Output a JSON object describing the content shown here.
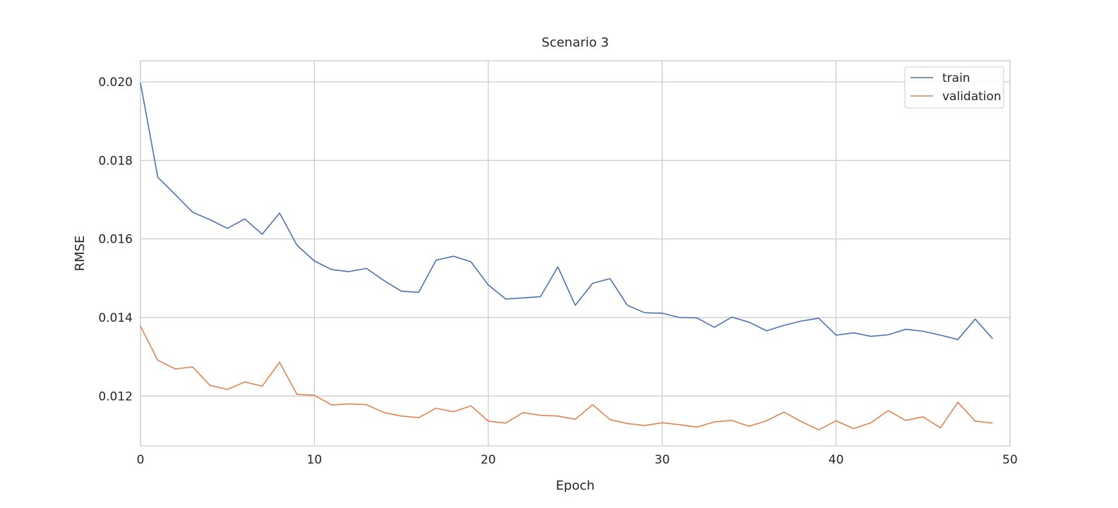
{
  "chart_data": {
    "type": "line",
    "title": "Scenario 3",
    "xlabel": "Epoch",
    "ylabel": "RMSE",
    "xlim": [
      0,
      50
    ],
    "ylim": [
      0.01073,
      0.02054
    ],
    "xticks": [
      0,
      10,
      20,
      30,
      40,
      50
    ],
    "xtick_labels": [
      "0",
      "10",
      "20",
      "30",
      "40",
      "50"
    ],
    "yticks": [
      0.012,
      0.014,
      0.016,
      0.018,
      0.02
    ],
    "ytick_labels": [
      "0.012",
      "0.014",
      "0.016",
      "0.018",
      "0.020"
    ],
    "grid": true,
    "legend_position": "top-right",
    "x": [
      0,
      1,
      2,
      3,
      4,
      5,
      6,
      7,
      8,
      9,
      10,
      11,
      12,
      13,
      14,
      15,
      16,
      17,
      18,
      19,
      20,
      21,
      22,
      23,
      24,
      25,
      26,
      27,
      28,
      29,
      30,
      31,
      32,
      33,
      34,
      35,
      36,
      37,
      38,
      39,
      40,
      41,
      42,
      43,
      44,
      45,
      46,
      47,
      48,
      49
    ],
    "series": [
      {
        "name": "train",
        "color": "#4c72b0",
        "values": [
          0.01998,
          0.01757,
          0.01713,
          0.01668,
          0.01649,
          0.01627,
          0.01651,
          0.01612,
          0.01666,
          0.01584,
          0.01544,
          0.01522,
          0.01517,
          0.01525,
          0.01494,
          0.01467,
          0.01464,
          0.01546,
          0.01556,
          0.01542,
          0.01483,
          0.01447,
          0.0145,
          0.01453,
          0.01529,
          0.01431,
          0.01487,
          0.01499,
          0.01431,
          0.01412,
          0.01411,
          0.014,
          0.01399,
          0.01375,
          0.01401,
          0.01388,
          0.01366,
          0.0138,
          0.01391,
          0.01398,
          0.01355,
          0.01361,
          0.01352,
          0.01356,
          0.0137,
          0.01365,
          0.01355,
          0.01344,
          0.01396,
          0.01346
        ]
      },
      {
        "name": "validation",
        "color": "#dd8452",
        "values": [
          0.01378,
          0.01291,
          0.01269,
          0.01274,
          0.01227,
          0.01217,
          0.01236,
          0.01225,
          0.01286,
          0.01204,
          0.01202,
          0.01177,
          0.0118,
          0.01178,
          0.01158,
          0.01149,
          0.01145,
          0.01169,
          0.0116,
          0.01175,
          0.01136,
          0.01131,
          0.01158,
          0.01151,
          0.01149,
          0.01141,
          0.01178,
          0.0114,
          0.0113,
          0.01125,
          0.01132,
          0.01127,
          0.01121,
          0.01134,
          0.01138,
          0.01123,
          0.01137,
          0.01159,
          0.01135,
          0.01114,
          0.01137,
          0.01117,
          0.01132,
          0.01163,
          0.01138,
          0.01147,
          0.01119,
          0.01184,
          0.01136,
          0.01131
        ]
      }
    ]
  }
}
